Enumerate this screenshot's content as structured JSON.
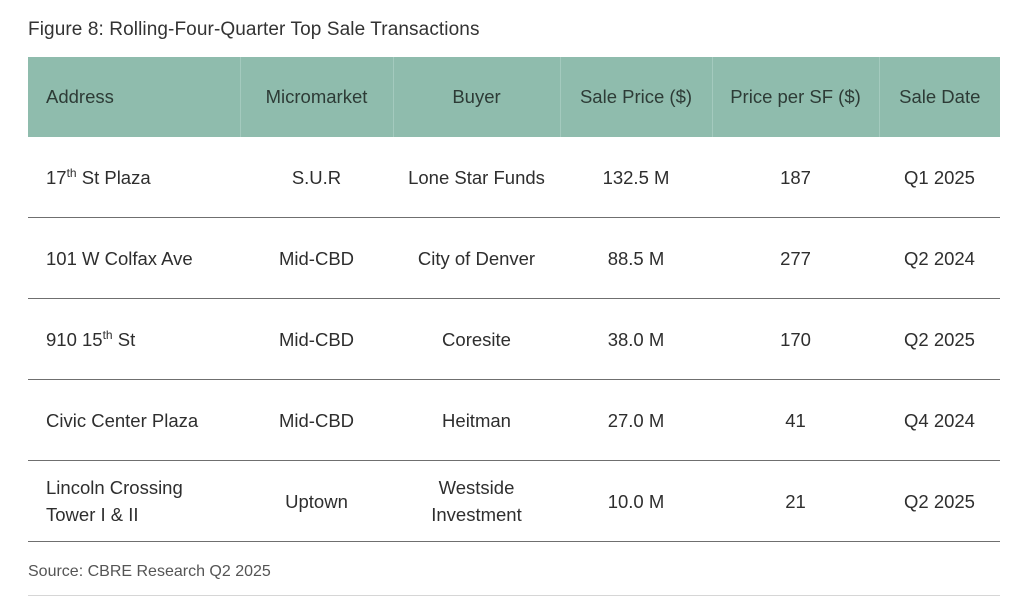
{
  "figure_title": "Figure 8: Rolling-Four-Quarter Top Sale Transactions",
  "table": {
    "headers": [
      "Address",
      "Micromarket",
      "Buyer",
      "Sale Price ($)",
      "Price per SF ($)",
      "Sale Date"
    ],
    "rows": [
      {
        "address": {
          "pre": "17",
          "sup": "th",
          "post": " St Plaza",
          "line2": ""
        },
        "micromarket": "S.U.R",
        "buyer": {
          "line1": "Lone Star Funds",
          "line2": ""
        },
        "sale_price": "132.5 M",
        "price_per_sf": "187",
        "sale_date": "Q1 2025"
      },
      {
        "address": {
          "pre": "101 W Colfax Ave",
          "sup": "",
          "post": "",
          "line2": ""
        },
        "micromarket": "Mid-CBD",
        "buyer": {
          "line1": "City of Denver",
          "line2": ""
        },
        "sale_price": "88.5 M",
        "price_per_sf": "277",
        "sale_date": "Q2 2024"
      },
      {
        "address": {
          "pre": "910 15",
          "sup": "th",
          "post": " St",
          "line2": ""
        },
        "micromarket": "Mid-CBD",
        "buyer": {
          "line1": "Coresite",
          "line2": ""
        },
        "sale_price": "38.0 M",
        "price_per_sf": "170",
        "sale_date": "Q2 2025"
      },
      {
        "address": {
          "pre": "Civic Center Plaza",
          "sup": "",
          "post": "",
          "line2": ""
        },
        "micromarket": "Mid-CBD",
        "buyer": {
          "line1": "Heitman",
          "line2": ""
        },
        "sale_price": "27.0 M",
        "price_per_sf": "41",
        "sale_date": "Q4 2024"
      },
      {
        "address": {
          "pre": "Lincoln Crossing",
          "sup": "",
          "post": "",
          "line2": "Tower I & II"
        },
        "micromarket": "Uptown",
        "buyer": {
          "line1": "Westside",
          "line2": "Investment"
        },
        "sale_price": "10.0 M",
        "price_per_sf": "21",
        "sale_date": "Q2 2025"
      }
    ]
  },
  "source": "Source: CBRE Research Q2 2025",
  "colors": {
    "header_background": "#8fbcad",
    "row_divider": "#6f6f6f"
  }
}
